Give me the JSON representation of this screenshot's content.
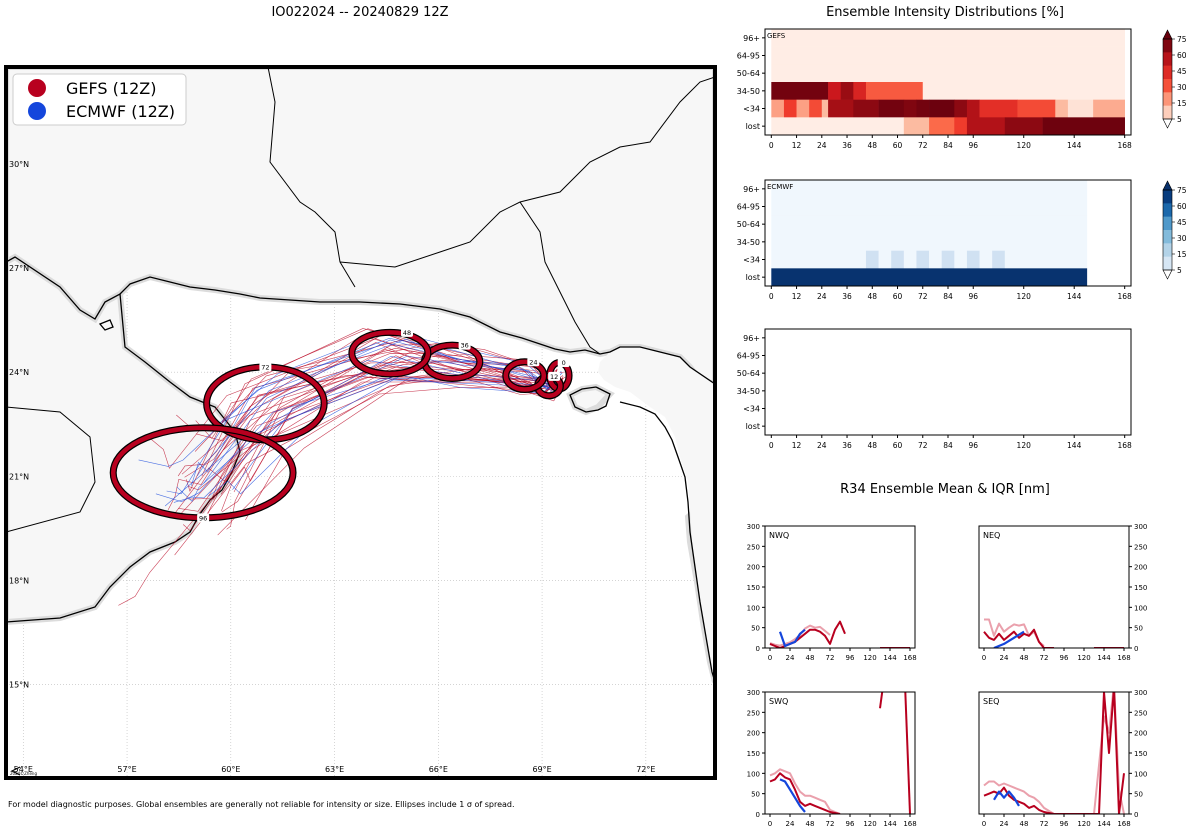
{
  "page": {
    "title": "IO022024 -- 20240829 12Z",
    "footnote": "For model diagnostic purposes. Global ensembles are generally not reliable for intensity or size. Ellipses include 1 σ of spread.",
    "attribution": "2024©Zheng",
    "r34_title": "R34 Ensemble Mean & IQR [nm]"
  },
  "colors": {
    "gefs": "#b8001f",
    "ecmwf": "#1446dc",
    "gefs_light": "#eaa0ac",
    "land": "#f7f7f7",
    "coast": "#000000"
  },
  "chart_data": [
    {
      "id": "track_map",
      "type": "scatter",
      "title": "IO022024 -- 20240829 12Z",
      "legend": [
        {
          "label": "GEFS (12Z)",
          "color": "#b8001f"
        },
        {
          "label": "ECMWF (12Z)",
          "color": "#1446dc"
        }
      ],
      "legend_position": "top-left",
      "xlim": [
        53.5,
        74
      ],
      "ylim": [
        12.3,
        32.8
      ],
      "xticks": [
        54,
        57,
        60,
        63,
        66,
        69,
        72
      ],
      "xtick_labels": [
        "54°E",
        "57°E",
        "60°E",
        "63°E",
        "66°E",
        "69°E",
        "72°E"
      ],
      "yticks": [
        15,
        18,
        21,
        24,
        27,
        30
      ],
      "ytick_labels": [
        "15°N",
        "18°N",
        "21°N",
        "24°N",
        "27°N",
        "30°N"
      ],
      "ellipses": [
        {
          "hour": "0",
          "lon": 69.5,
          "lat": 23.9,
          "rx_deg": 0.28,
          "ry_deg": 0.38
        },
        {
          "hour": "12",
          "lon": 69.2,
          "lat": 23.6,
          "rx_deg": 0.33,
          "ry_deg": 0.28
        },
        {
          "hour": "24",
          "lon": 68.5,
          "lat": 23.9,
          "rx_deg": 0.55,
          "ry_deg": 0.4
        },
        {
          "hour": "36",
          "lon": 66.4,
          "lat": 24.3,
          "rx_deg": 0.8,
          "ry_deg": 0.48
        },
        {
          "hour": "48",
          "lon": 64.6,
          "lat": 24.55,
          "rx_deg": 1.1,
          "ry_deg": 0.6
        },
        {
          "hour": "72",
          "lon": 61.0,
          "lat": 23.1,
          "rx_deg": 1.7,
          "ry_deg": 1.05
        },
        {
          "hour": "96",
          "lon": 59.2,
          "lat": 21.1,
          "rx_deg": 2.6,
          "ry_deg": 1.3
        }
      ],
      "mean_track": [
        [
          69.5,
          23.9
        ],
        [
          69.2,
          23.6
        ],
        [
          68.5,
          23.9
        ],
        [
          66.4,
          24.3
        ],
        [
          64.6,
          24.55
        ],
        [
          61.0,
          23.1
        ],
        [
          59.2,
          21.1
        ]
      ]
    },
    {
      "id": "gefs_intensity",
      "type": "heatmap",
      "title": "Ensemble Intensity Distributions [%]",
      "label": "GEFS",
      "colormap": "Reds",
      "rows": [
        "96+",
        "64-95",
        "50-64",
        "34-50",
        "<34",
        "lost"
      ],
      "xticks": [
        0,
        12,
        24,
        36,
        48,
        60,
        72,
        84,
        96,
        120,
        144,
        168
      ],
      "cells": {
        "96+": [
          [
            0,
            168,
            2
          ]
        ],
        "64-95": [
          [
            0,
            168,
            2
          ]
        ],
        "50-64": [
          [
            0,
            168,
            2
          ]
        ],
        "34-50": [
          [
            0,
            27,
            95
          ],
          [
            27,
            33,
            60
          ],
          [
            33,
            39,
            80
          ],
          [
            39,
            45,
            55
          ],
          [
            45,
            72,
            35
          ],
          [
            72,
            168,
            2
          ]
        ],
        "<34": [
          [
            0,
            6,
            20
          ],
          [
            6,
            12,
            45
          ],
          [
            12,
            18,
            20
          ],
          [
            18,
            24,
            40
          ],
          [
            24,
            27,
            15
          ],
          [
            27,
            39,
            75
          ],
          [
            39,
            51,
            85
          ],
          [
            51,
            63,
            95
          ],
          [
            63,
            69,
            90
          ],
          [
            69,
            75,
            95
          ],
          [
            75,
            87,
            98
          ],
          [
            87,
            93,
            85
          ],
          [
            93,
            99,
            70
          ],
          [
            99,
            117,
            50
          ],
          [
            117,
            135,
            40
          ],
          [
            135,
            141,
            15
          ],
          [
            141,
            153,
            5
          ],
          [
            153,
            168,
            18
          ]
        ],
        "lost": [
          [
            0,
            63,
            2
          ],
          [
            63,
            75,
            15
          ],
          [
            75,
            87,
            30
          ],
          [
            87,
            93,
            45
          ],
          [
            93,
            111,
            70
          ],
          [
            111,
            129,
            85
          ],
          [
            129,
            168,
            97
          ]
        ]
      }
    },
    {
      "id": "ecmwf_intensity",
      "type": "heatmap",
      "label": "ECMWF",
      "colormap": "Blues",
      "rows": [
        "96+",
        "64-95",
        "50-64",
        "34-50",
        "<34",
        "lost"
      ],
      "xticks": [
        0,
        12,
        24,
        36,
        48,
        60,
        72,
        84,
        96,
        120,
        144,
        168
      ],
      "data_end_hour": 150,
      "cells": {
        "96+": [
          [
            0,
            150,
            2
          ]
        ],
        "64-95": [
          [
            0,
            150,
            2
          ]
        ],
        "50-64": [
          [
            0,
            150,
            2
          ]
        ],
        "34-50": [
          [
            0,
            150,
            2
          ]
        ],
        "<34": [
          [
            0,
            45,
            2
          ],
          [
            45,
            51,
            12
          ],
          [
            51,
            57,
            2
          ],
          [
            57,
            63,
            12
          ],
          [
            63,
            69,
            2
          ],
          [
            69,
            75,
            12
          ],
          [
            75,
            81,
            2
          ],
          [
            81,
            87,
            12
          ],
          [
            87,
            93,
            2
          ],
          [
            93,
            99,
            12
          ],
          [
            99,
            105,
            2
          ],
          [
            105,
            111,
            12
          ],
          [
            111,
            150,
            2
          ]
        ],
        "lost": [
          [
            0,
            150,
            98
          ]
        ]
      }
    },
    {
      "id": "empty_intensity",
      "type": "heatmap",
      "label": "",
      "rows": [
        "96+",
        "64-95",
        "50-64",
        "34-50",
        "<34",
        "lost"
      ],
      "xticks": [
        0,
        12,
        24,
        36,
        48,
        60,
        72,
        84,
        96,
        120,
        144,
        168
      ],
      "cells": {}
    },
    {
      "id": "colorbars",
      "type": "bar",
      "ticks": [
        "75",
        "60",
        "45",
        "30",
        "15",
        "5"
      ]
    },
    {
      "id": "r34",
      "type": "line",
      "title": "R34 Ensemble Mean & IQR [nm]",
      "xticks": [
        0,
        24,
        48,
        72,
        96,
        120,
        144,
        168
      ],
      "yticks": [
        0,
        50,
        100,
        150,
        200,
        250,
        300
      ],
      "ylim": [
        0,
        300
      ],
      "xlim": [
        -6,
        174
      ],
      "panels": [
        {
          "label": "NWQ",
          "gefs_mean": [
            [
              0,
              10
            ],
            [
              6,
              5
            ],
            [
              12,
              0
            ],
            [
              18,
              5
            ],
            [
              24,
              10
            ],
            [
              30,
              15
            ],
            [
              36,
              25
            ],
            [
              42,
              35
            ],
            [
              48,
              45
            ],
            [
              54,
              45
            ],
            [
              60,
              40
            ],
            [
              66,
              30
            ],
            [
              72,
              10
            ],
            [
              78,
              45
            ],
            [
              84,
              65
            ],
            [
              90,
              35
            ]
          ],
          "gefs_iqr": [
            [
              0,
              12
            ],
            [
              6,
              8
            ],
            [
              12,
              6
            ],
            [
              18,
              10
            ],
            [
              24,
              14
            ],
            [
              30,
              22
            ],
            [
              36,
              32
            ],
            [
              42,
              48
            ],
            [
              48,
              55
            ],
            [
              54,
              50
            ],
            [
              60,
              52
            ],
            [
              66,
              42
            ],
            [
              72,
              32
            ]
          ],
          "ecmwf_mean": [
            [
              12,
              40
            ],
            [
              18,
              5
            ],
            [
              24,
              10
            ],
            [
              30,
              15
            ],
            [
              36,
              35
            ],
            [
              42,
              45
            ]
          ],
          "gefs_late": [
            [
              132,
              0
            ],
            [
              168,
              0
            ]
          ]
        },
        {
          "label": "NEQ",
          "gefs_mean": [
            [
              0,
              40
            ],
            [
              6,
              25
            ],
            [
              12,
              20
            ],
            [
              18,
              35
            ],
            [
              24,
              20
            ],
            [
              30,
              30
            ],
            [
              36,
              40
            ],
            [
              42,
              25
            ],
            [
              48,
              35
            ],
            [
              54,
              30
            ],
            [
              60,
              45
            ],
            [
              66,
              15
            ],
            [
              72,
              0
            ],
            [
              84,
              0
            ]
          ],
          "gefs_iqr": [
            [
              0,
              70
            ],
            [
              6,
              70
            ],
            [
              12,
              30
            ],
            [
              18,
              60
            ],
            [
              24,
              40
            ],
            [
              30,
              50
            ],
            [
              36,
              58
            ],
            [
              42,
              55
            ],
            [
              48,
              58
            ],
            [
              54,
              30
            ],
            [
              60,
              40
            ],
            [
              66,
              15
            ],
            [
              72,
              5
            ]
          ],
          "ecmwf_mean": [
            [
              12,
              0
            ],
            [
              24,
              10
            ],
            [
              36,
              25
            ],
            [
              48,
              40
            ]
          ],
          "gefs_late": [
            [
              132,
              0
            ],
            [
              168,
              0
            ]
          ]
        },
        {
          "label": "SWQ",
          "gefs_mean": [
            [
              0,
              80
            ],
            [
              6,
              85
            ],
            [
              12,
              100
            ],
            [
              18,
              90
            ],
            [
              24,
              85
            ],
            [
              30,
              60
            ],
            [
              36,
              30
            ],
            [
              42,
              20
            ],
            [
              48,
              25
            ],
            [
              54,
              20
            ],
            [
              60,
              15
            ],
            [
              66,
              10
            ],
            [
              72,
              5
            ],
            [
              84,
              0
            ]
          ],
          "gefs_iqr": [
            [
              0,
              95
            ],
            [
              6,
              100
            ],
            [
              12,
              110
            ],
            [
              18,
              105
            ],
            [
              24,
              100
            ],
            [
              30,
              75
            ],
            [
              36,
              55
            ],
            [
              42,
              45
            ],
            [
              48,
              45
            ],
            [
              54,
              40
            ],
            [
              60,
              35
            ],
            [
              66,
              30
            ],
            [
              72,
              10
            ],
            [
              84,
              0
            ]
          ],
          "ecmwf_mean": [
            [
              12,
              85
            ],
            [
              18,
              80
            ],
            [
              24,
              60
            ],
            [
              30,
              40
            ],
            [
              36,
              20
            ],
            [
              42,
              5
            ]
          ],
          "gefs_late": [
            [
              132,
              260
            ],
            [
              136,
              320
            ]
          ],
          "gefs_late2": [
            [
              162,
              320
            ],
            [
              168,
              0
            ]
          ]
        },
        {
          "label": "SEQ",
          "gefs_mean": [
            [
              0,
              45
            ],
            [
              6,
              50
            ],
            [
              12,
              55
            ],
            [
              18,
              50
            ],
            [
              24,
              65
            ],
            [
              30,
              45
            ],
            [
              36,
              35
            ],
            [
              42,
              30
            ],
            [
              48,
              25
            ],
            [
              54,
              15
            ],
            [
              60,
              20
            ],
            [
              66,
              10
            ],
            [
              72,
              5
            ],
            [
              84,
              0
            ],
            [
              120,
              0
            ],
            [
              132,
              0
            ],
            [
              138,
              0
            ],
            [
              144,
              300
            ],
            [
              150,
              150
            ],
            [
              156,
              310
            ],
            [
              162,
              0
            ],
            [
              168,
              100
            ]
          ],
          "gefs_iqr": [
            [
              0,
              70
            ],
            [
              6,
              80
            ],
            [
              12,
              80
            ],
            [
              18,
              70
            ],
            [
              24,
              75
            ],
            [
              30,
              70
            ],
            [
              36,
              65
            ],
            [
              42,
              60
            ],
            [
              48,
              55
            ],
            [
              54,
              45
            ],
            [
              60,
              40
            ],
            [
              66,
              30
            ],
            [
              72,
              15
            ],
            [
              84,
              0
            ],
            [
              132,
              0
            ],
            [
              144,
              240
            ],
            [
              150,
              200
            ],
            [
              156,
              320
            ],
            [
              162,
              60
            ],
            [
              168,
              0
            ]
          ],
          "ecmwf_mean": [
            [
              12,
              35
            ],
            [
              18,
              55
            ],
            [
              24,
              40
            ],
            [
              30,
              55
            ],
            [
              36,
              40
            ],
            [
              42,
              20
            ]
          ]
        }
      ]
    }
  ]
}
